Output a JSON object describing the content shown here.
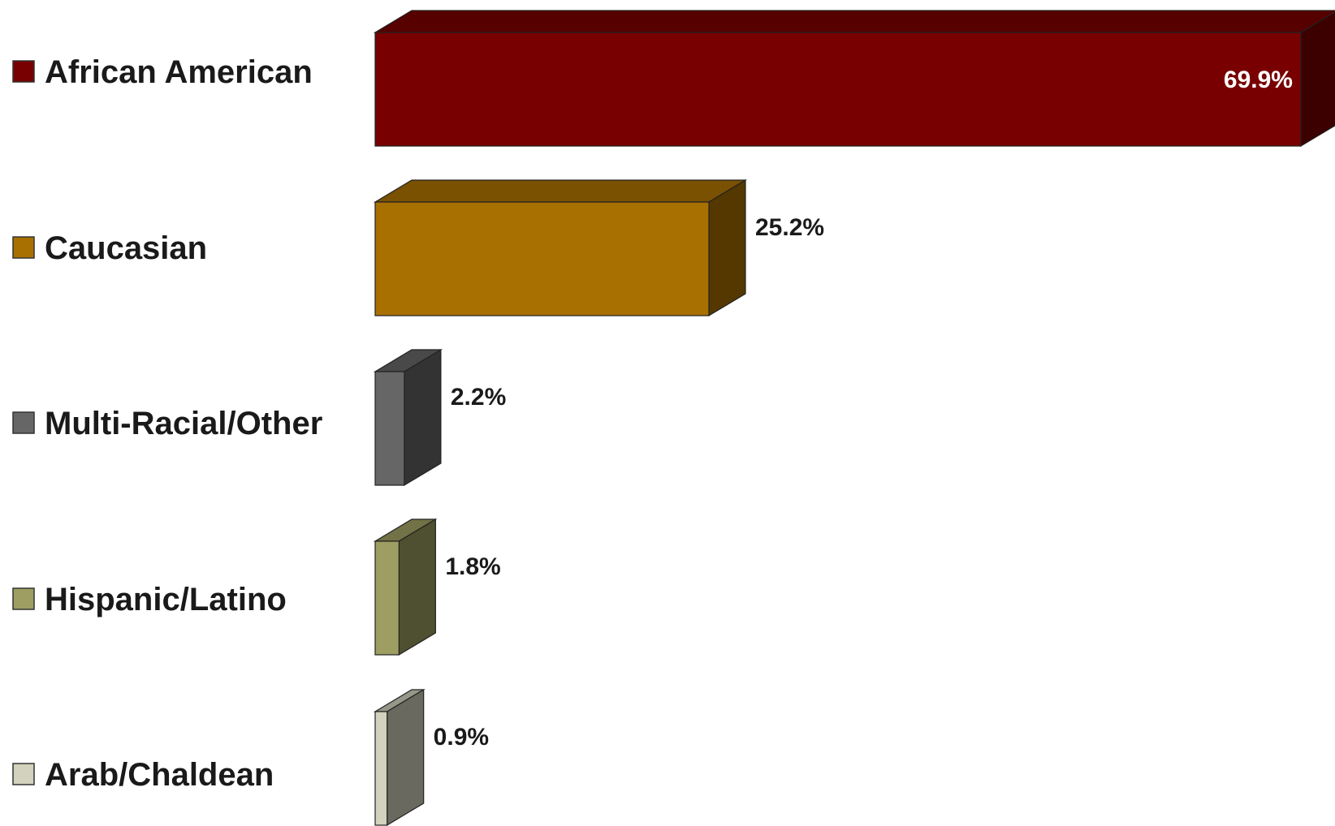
{
  "chart_data": {
    "type": "bar",
    "orientation": "horizontal",
    "style": "3d",
    "categories": [
      "African American",
      "Caucasian",
      "Multi-Racial/Other",
      "Hispanic/Latino",
      "Arab/Chaldean"
    ],
    "values": [
      69.9,
      25.2,
      2.2,
      1.8,
      0.9
    ],
    "value_labels": [
      "69.9%",
      "25.2%",
      "2.2%",
      "1.8%",
      "0.9%"
    ],
    "unit": "%",
    "colors": [
      "#780000",
      "#A87000",
      "#666666",
      "#9E9E62",
      "#D2D2BE"
    ],
    "legend_position": "left",
    "grid": false,
    "xlim": [
      0,
      69.9
    ]
  }
}
